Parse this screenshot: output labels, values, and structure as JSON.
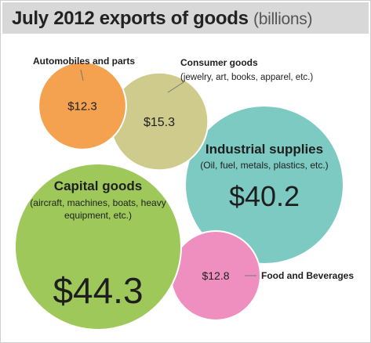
{
  "title": "July 2012 exports of goods",
  "unit": "(billions)",
  "chart_data": {
    "type": "bubble",
    "title": "July 2012 exports of goods (billions)",
    "currency": "$",
    "categories": [
      {
        "name": "Capital goods",
        "detail": "(aircraft, machines, boats, heavy equipment, etc.)",
        "value": 44.3,
        "color": "#9ec95a",
        "label_position": "inside"
      },
      {
        "name": "Industrial supplies",
        "detail": "(Oil, fuel, metals, plastics, etc.)",
        "value": 40.2,
        "color": "#7dcac2",
        "label_position": "inside"
      },
      {
        "name": "Consumer goods",
        "detail": "(jewelry, art, books, apparel, etc.)",
        "value": 15.3,
        "color": "#cfcb8d",
        "label_position": "outside"
      },
      {
        "name": "Food and Beverages",
        "detail": "",
        "value": 12.8,
        "color": "#ef8fbf",
        "label_position": "outside"
      },
      {
        "name": "Automobiles and parts",
        "detail": "",
        "value": 12.3,
        "color": "#f4a24f",
        "label_position": "outside"
      }
    ]
  }
}
